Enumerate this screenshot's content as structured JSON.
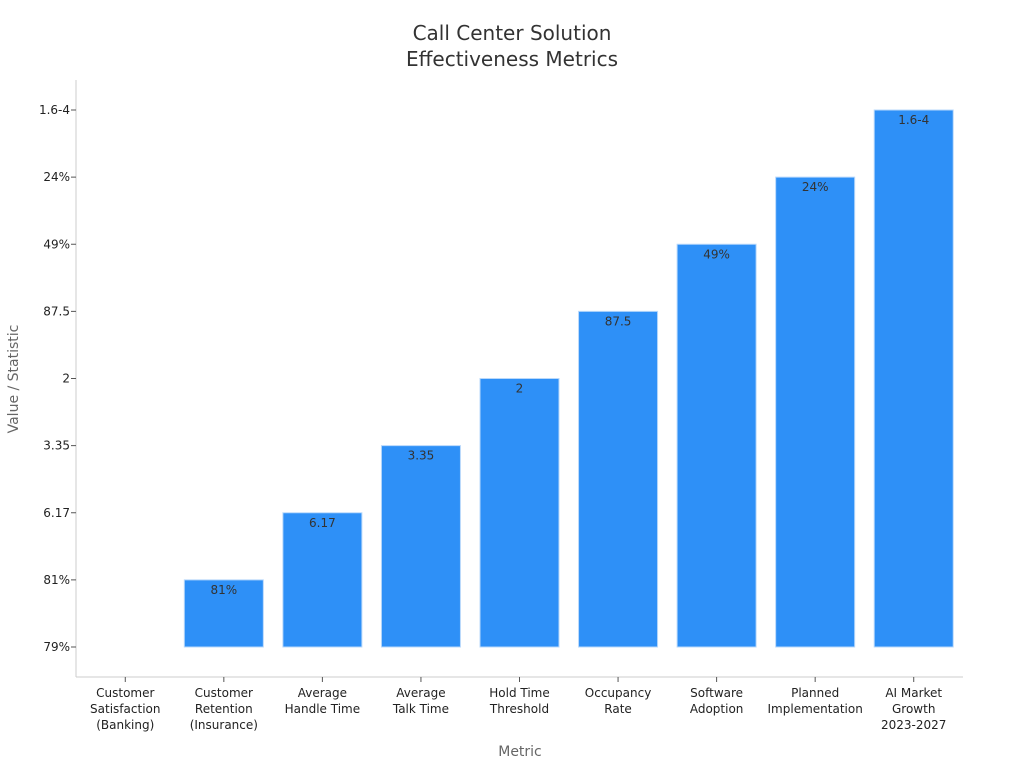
{
  "chart_data": {
    "type": "bar",
    "title": [
      "Call Center Solution",
      "Effectiveness Metrics"
    ],
    "xlabel": "Metric",
    "ylabel": "Value / Statistic",
    "categories": [
      [
        "Customer",
        "Satisfaction",
        "(Banking)"
      ],
      [
        "Customer",
        "Retention",
        "(Insurance)"
      ],
      [
        "Average",
        "Handle Time"
      ],
      [
        "Average",
        "Talk Time"
      ],
      [
        "Hold Time",
        "Threshold"
      ],
      [
        "Occupancy",
        "Rate"
      ],
      [
        "Software",
        "Adoption"
      ],
      [
        "Planned",
        "Implementation"
      ],
      [
        "AI Market",
        "Growth",
        "2023-2027"
      ]
    ],
    "y_ticks": [
      "79%",
      "81%",
      "6.17",
      "3.35",
      "2",
      "87.5",
      "49%",
      "24%",
      "1.6-4"
    ],
    "values": [
      "79%",
      "81%",
      "6.17",
      "3.35",
      "2",
      "87.5",
      "49%",
      "24%",
      "1.6-4"
    ],
    "data_labels": [
      "",
      "81%",
      "6.17",
      "3.35",
      "2",
      "87.5",
      "49%",
      "24%",
      "1.6-4"
    ],
    "bar_color": "#2e90f7",
    "grid": false,
    "legend": "none"
  }
}
